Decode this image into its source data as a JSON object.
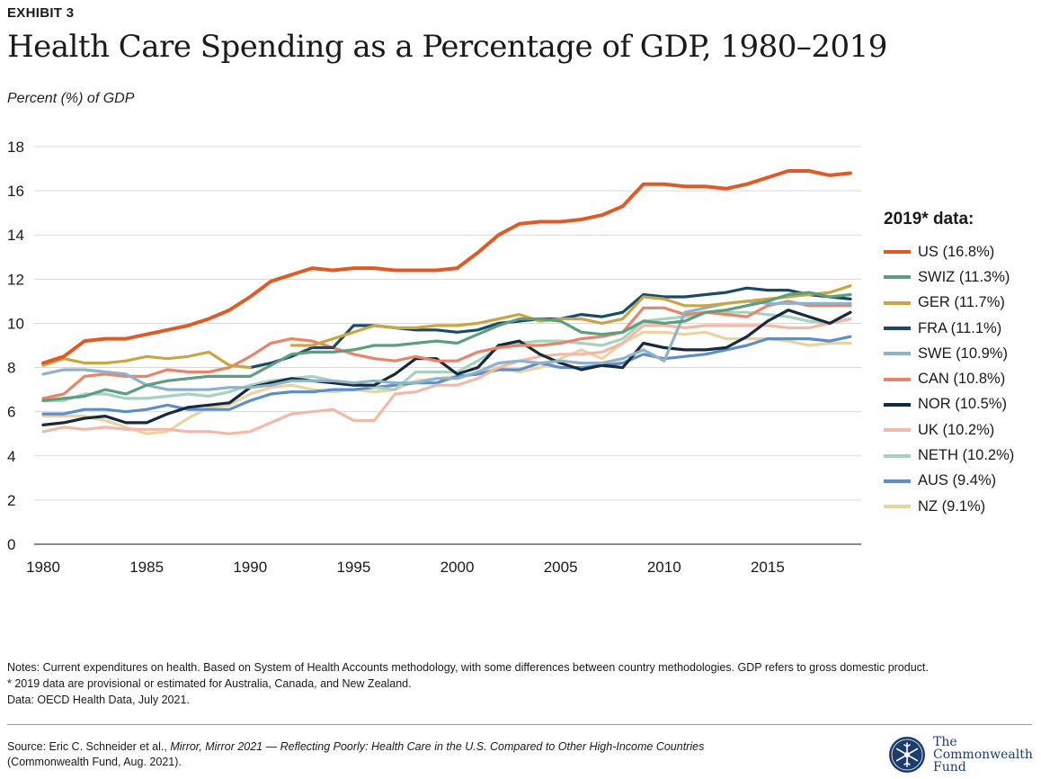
{
  "header": {
    "exhibit": "EXHIBIT 3",
    "title": "Health Care Spending as a Percentage of GDP, 1980–2019",
    "ylabel": "Percent (%) of GDP"
  },
  "legend": {
    "title": "2019* data:",
    "items": [
      {
        "label": "US (16.8%)",
        "color": "#e05a26"
      },
      {
        "label": "SWIZ (11.3%)",
        "color": "#5e9e7e"
      },
      {
        "label": "GER (11.7%)",
        "color": "#c9a645"
      },
      {
        "label": "FRA (11.1%)",
        "color": "#1b4a68"
      },
      {
        "label": "SWE (10.9%)",
        "color": "#8fb2c9"
      },
      {
        "label": "CAN (10.8%)",
        "color": "#ea8468"
      },
      {
        "label": "NOR (10.5%)",
        "color": "#172a3d"
      },
      {
        "label": "UK (10.2%)",
        "color": "#f3b9a8"
      },
      {
        "label": "NETH (10.2%)",
        "color": "#a6d2c2"
      },
      {
        "label": "AUS (9.4%)",
        "color": "#5a8fc9"
      },
      {
        "label": "NZ (9.1%)",
        "color": "#ead3a0"
      }
    ]
  },
  "chart_data": {
    "type": "line",
    "x": [
      1980,
      1981,
      1982,
      1983,
      1984,
      1985,
      1986,
      1987,
      1988,
      1989,
      1990,
      1991,
      1992,
      1993,
      1994,
      1995,
      1996,
      1997,
      1998,
      1999,
      2000,
      2001,
      2002,
      2003,
      2004,
      2005,
      2006,
      2007,
      2008,
      2009,
      2010,
      2011,
      2012,
      2013,
      2014,
      2015,
      2016,
      2017,
      2018,
      2019
    ],
    "xticks": [
      1980,
      1985,
      1990,
      1995,
      2000,
      2005,
      2010,
      2015
    ],
    "yticks": [
      0,
      2,
      4,
      6,
      8,
      10,
      12,
      14,
      16,
      18
    ],
    "ylim": [
      0,
      18
    ],
    "xlim": [
      1980,
      2019
    ],
    "grid": true,
    "legend_position": "right",
    "series": [
      {
        "name": "NZ",
        "color": "#ead3a0",
        "values": [
          5.8,
          5.8,
          5.8,
          5.6,
          5.3,
          5.0,
          5.1,
          5.7,
          6.2,
          6.3,
          6.8,
          7.1,
          7.2,
          7.0,
          6.9,
          7.0,
          6.9,
          7.0,
          7.4,
          7.5,
          7.6,
          7.7,
          8.0,
          7.8,
          8.0,
          8.4,
          8.8,
          8.4,
          9.1,
          9.6,
          9.6,
          9.5,
          9.6,
          9.3,
          9.3,
          9.3,
          9.2,
          9.0,
          9.1,
          9.1
        ]
      },
      {
        "name": "AUS",
        "color": "#5a8fc9",
        "values": [
          5.9,
          5.9,
          6.1,
          6.1,
          6.0,
          6.1,
          6.3,
          6.1,
          6.1,
          6.1,
          6.5,
          6.8,
          6.9,
          6.9,
          7.0,
          7.0,
          7.1,
          7.2,
          7.3,
          7.3,
          7.6,
          7.7,
          7.9,
          7.9,
          8.2,
          8.0,
          8.0,
          8.1,
          8.2,
          8.6,
          8.4,
          8.5,
          8.6,
          8.8,
          9.0,
          9.3,
          9.3,
          9.3,
          9.2,
          9.4
        ]
      },
      {
        "name": "NETH",
        "color": "#a6d2c2",
        "values": [
          6.5,
          6.5,
          6.8,
          6.8,
          6.6,
          6.6,
          6.7,
          6.8,
          6.7,
          6.9,
          7.2,
          7.4,
          7.5,
          7.6,
          7.4,
          7.3,
          7.1,
          7.0,
          7.8,
          7.8,
          7.8,
          8.3,
          8.9,
          9.1,
          9.2,
          9.2,
          9.1,
          9.0,
          9.3,
          10.1,
          10.2,
          10.3,
          10.5,
          10.5,
          10.5,
          10.4,
          10.3,
          10.1,
          10.0,
          10.2
        ]
      },
      {
        "name": "UK",
        "color": "#f3b9a8",
        "values": [
          5.1,
          5.3,
          5.2,
          5.3,
          5.2,
          5.2,
          5.2,
          5.1,
          5.1,
          5.0,
          5.1,
          5.5,
          5.9,
          6.0,
          6.1,
          5.6,
          5.6,
          6.8,
          6.9,
          7.2,
          7.2,
          7.5,
          8.0,
          8.3,
          8.5,
          8.6,
          8.6,
          8.7,
          9.1,
          9.9,
          9.9,
          9.8,
          9.9,
          9.9,
          9.9,
          9.9,
          9.8,
          9.8,
          10.0,
          10.2
        ]
      },
      {
        "name": "NOR",
        "color": "#172a3d",
        "values": [
          5.4,
          5.5,
          5.7,
          5.8,
          5.5,
          5.5,
          5.9,
          6.2,
          6.3,
          6.4,
          7.1,
          7.3,
          7.5,
          7.4,
          7.3,
          7.2,
          7.2,
          7.7,
          8.4,
          8.4,
          7.7,
          8.0,
          9.0,
          9.2,
          8.6,
          8.2,
          7.9,
          8.1,
          8.0,
          9.1,
          8.9,
          8.8,
          8.8,
          8.9,
          9.4,
          10.1,
          10.6,
          10.3,
          10.0,
          10.5
        ]
      },
      {
        "name": "CAN",
        "color": "#ea8468",
        "values": [
          6.6,
          6.8,
          7.6,
          7.7,
          7.6,
          7.6,
          7.9,
          7.8,
          7.8,
          8.0,
          8.5,
          9.1,
          9.3,
          9.2,
          8.9,
          8.6,
          8.4,
          8.3,
          8.5,
          8.3,
          8.3,
          8.7,
          8.9,
          9.0,
          9.0,
          9.1,
          9.3,
          9.4,
          9.6,
          10.7,
          10.7,
          10.4,
          10.5,
          10.4,
          10.3,
          10.8,
          11.0,
          10.8,
          10.8,
          10.8
        ]
      },
      {
        "name": "SWE",
        "color": "#8fb2c9",
        "values": [
          7.7,
          7.9,
          7.9,
          7.8,
          7.7,
          7.2,
          7.0,
          7.0,
          7.0,
          7.1,
          7.1,
          7.2,
          7.4,
          7.4,
          7.4,
          7.3,
          7.4,
          7.3,
          7.3,
          7.5,
          7.5,
          7.8,
          8.2,
          8.3,
          8.2,
          8.3,
          8.2,
          8.2,
          8.4,
          8.8,
          8.3,
          10.5,
          10.7,
          10.9,
          11.0,
          10.9,
          10.9,
          10.9,
          10.9,
          10.9
        ]
      },
      {
        "name": "FRA",
        "color": "#1b4a68",
        "values": [
          null,
          null,
          null,
          null,
          null,
          null,
          null,
          null,
          null,
          null,
          8.0,
          8.2,
          8.5,
          8.9,
          8.9,
          9.9,
          9.9,
          9.8,
          9.7,
          9.7,
          9.6,
          9.7,
          10.0,
          10.1,
          10.2,
          10.2,
          10.4,
          10.3,
          10.5,
          11.3,
          11.2,
          11.2,
          11.3,
          11.4,
          11.6,
          11.5,
          11.5,
          11.3,
          11.2,
          11.1
        ]
      },
      {
        "name": "GER",
        "color": "#c9a645",
        "values": [
          8.1,
          8.4,
          8.2,
          8.2,
          8.3,
          8.5,
          8.4,
          8.5,
          8.7,
          8.1,
          8.0,
          null,
          9.0,
          9.0,
          9.3,
          9.6,
          9.9,
          9.8,
          9.8,
          9.9,
          9.9,
          10.0,
          10.2,
          10.4,
          10.1,
          10.2,
          10.2,
          10.0,
          10.2,
          11.2,
          11.1,
          10.8,
          10.8,
          10.9,
          11.0,
          11.1,
          11.2,
          11.3,
          11.4,
          11.7
        ]
      },
      {
        "name": "SWIZ",
        "color": "#5e9e7e",
        "values": [
          6.5,
          6.6,
          6.7,
          7.0,
          6.8,
          7.2,
          7.4,
          7.5,
          7.6,
          7.6,
          7.6,
          8.1,
          8.6,
          8.7,
          8.7,
          8.8,
          9.0,
          9.0,
          9.1,
          9.2,
          9.1,
          9.5,
          9.9,
          10.2,
          10.2,
          10.1,
          9.6,
          9.5,
          9.6,
          10.1,
          10.0,
          10.1,
          10.5,
          10.6,
          10.8,
          11.0,
          11.3,
          11.4,
          11.2,
          11.3
        ]
      },
      {
        "name": "US",
        "color": "#e05a26",
        "values": [
          8.2,
          8.5,
          9.2,
          9.3,
          9.3,
          9.5,
          9.7,
          9.9,
          10.2,
          10.6,
          11.2,
          11.9,
          12.2,
          12.5,
          12.4,
          12.5,
          12.5,
          12.4,
          12.4,
          12.4,
          12.5,
          13.2,
          14.0,
          14.5,
          14.6,
          14.6,
          14.7,
          14.9,
          15.3,
          16.3,
          16.3,
          16.2,
          16.2,
          16.1,
          16.3,
          16.6,
          16.9,
          16.9,
          16.7,
          16.8
        ]
      }
    ]
  },
  "notes": {
    "line1": "Notes: Current expenditures on health. Based on System of Health Accounts methodology, with some differences between country methodologies. GDP refers to gross domestic product.",
    "line2": "* 2019 data are provisional or estimated for Australia, Canada, and New Zealand.",
    "line3": "Data: OECD Health Data, July 2021."
  },
  "source": {
    "prefix": "Source: Eric C. Schneider et al., ",
    "italic": "Mirror, Mirror 2021 — Reflecting Poorly: Health Care in the U.S. Compared to Other High-Income Countries",
    "suffix": "(Commonwealth Fund, Aug. 2021)."
  },
  "logo": {
    "line1": "The",
    "line2": "Commonwealth",
    "line3": "Fund",
    "color": "#1d3c6e"
  }
}
